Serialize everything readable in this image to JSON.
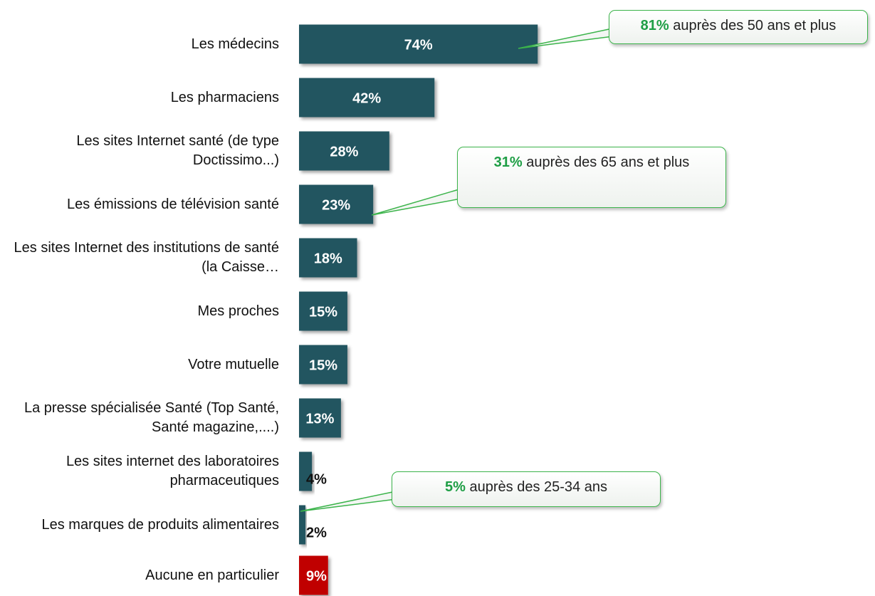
{
  "chart_data": {
    "type": "bar",
    "orientation": "horizontal",
    "categories": [
      "Les médecins",
      "Les pharmaciens",
      "Les sites Internet santé (de type Doctissimo...)",
      "Les émissions de télévision santé",
      "Les sites Internet des institutions de santé (la Caisse…",
      "Mes proches",
      "Votre mutuelle",
      "La presse spécialisée Santé (Top Santé, Santé magazine,....)",
      "Les sites internet des laboratoires pharmaceutiques",
      "Les marques de produits alimentaires",
      "Aucune en particulier"
    ],
    "values": [
      74,
      42,
      28,
      23,
      18,
      15,
      15,
      13,
      4,
      2,
      9
    ],
    "value_labels": [
      "74%",
      "42%",
      "28%",
      "23%",
      "18%",
      "15%",
      "15%",
      "13%",
      "4%",
      "2%",
      "9%"
    ],
    "colors": [
      "#245560",
      "#245560",
      "#245560",
      "#245560",
      "#245560",
      "#245560",
      "#245560",
      "#245560",
      "#245560",
      "#245560",
      "#c00000"
    ],
    "annotations": [
      {
        "highlight": "81%",
        "text": "auprès des 50 ans et plus"
      },
      {
        "highlight": "31%",
        "text": "auprès des 65 ans et plus"
      },
      {
        "highlight": "5%",
        "text": "auprès des 25-34 ans"
      }
    ]
  }
}
